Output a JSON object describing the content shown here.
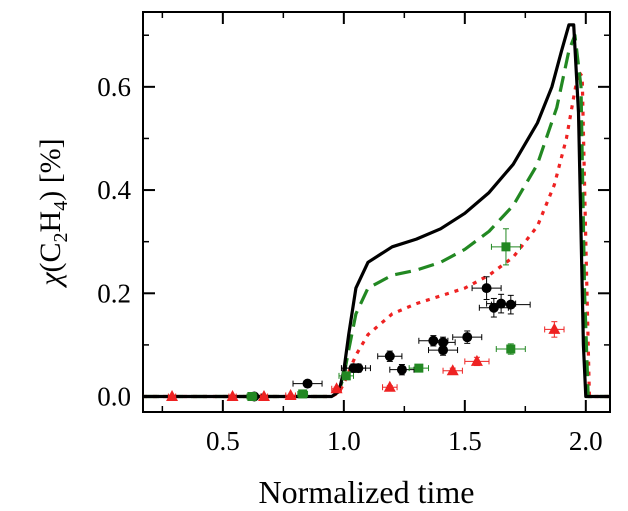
{
  "chart_data": {
    "type": "line",
    "xlabel": "Normalized time",
    "ylabel": {
      "chi": "χ",
      "open": "(C",
      "sub1": "2",
      "mid": "H",
      "sub2": "4",
      "close": ") [%]"
    },
    "xlim": [
      0.17,
      2.1
    ],
    "ylim": [
      -0.03,
      0.745
    ],
    "x_ticks": [
      0.5,
      1.0,
      1.5,
      2.0
    ],
    "x_tick_labels": [
      "0.5",
      "1.0",
      "1.5",
      "2.0"
    ],
    "y_ticks": [
      0.0,
      0.2,
      0.4,
      0.6
    ],
    "y_tick_labels": [
      "0.0",
      "0.2",
      "0.4",
      "0.6"
    ],
    "grid": false,
    "legend": "none",
    "series": [
      {
        "style": "solid",
        "color": "#000000",
        "x": [
          0.17,
          0.95,
          0.98,
          1.0,
          1.02,
          1.05,
          1.1,
          1.2,
          1.3,
          1.4,
          1.5,
          1.6,
          1.7,
          1.8,
          1.86,
          1.9,
          1.93,
          1.95,
          1.97,
          1.99,
          2.0,
          2.1
        ],
        "y": [
          0.0,
          0.0,
          0.01,
          0.05,
          0.12,
          0.21,
          0.26,
          0.29,
          0.305,
          0.325,
          0.355,
          0.395,
          0.45,
          0.53,
          0.6,
          0.67,
          0.72,
          0.72,
          0.55,
          0.1,
          0.0,
          0.0
        ]
      },
      {
        "style": "dashed",
        "color": "#228822",
        "x": [
          0.17,
          0.95,
          0.98,
          1.0,
          1.02,
          1.05,
          1.1,
          1.2,
          1.3,
          1.4,
          1.5,
          1.6,
          1.7,
          1.8,
          1.88,
          1.93,
          1.955,
          1.98,
          1.995,
          2.01,
          2.1
        ],
        "y": [
          0.0,
          0.0,
          0.01,
          0.04,
          0.09,
          0.16,
          0.21,
          0.235,
          0.245,
          0.26,
          0.285,
          0.32,
          0.37,
          0.45,
          0.56,
          0.67,
          0.7,
          0.6,
          0.2,
          0.0,
          0.0
        ]
      },
      {
        "style": "dotted",
        "color": "#ee2222",
        "x": [
          0.17,
          0.95,
          0.98,
          1.0,
          1.05,
          1.1,
          1.2,
          1.3,
          1.4,
          1.5,
          1.6,
          1.7,
          1.8,
          1.87,
          1.92,
          1.95,
          1.97,
          1.985,
          2.0,
          2.015,
          2.1
        ],
        "y": [
          0.0,
          0.0,
          0.008,
          0.025,
          0.08,
          0.12,
          0.16,
          0.18,
          0.195,
          0.21,
          0.235,
          0.27,
          0.33,
          0.41,
          0.5,
          0.58,
          0.63,
          0.62,
          0.3,
          0.0,
          0.0
        ]
      }
    ],
    "scatter": [
      {
        "marker": "circle",
        "color": "#000000",
        "points": [
          {
            "x": 0.63,
            "y": 0.0,
            "xerr": 0.03,
            "yerr": 0.0
          },
          {
            "x": 0.85,
            "y": 0.025,
            "xerr": 0.06,
            "yerr": 0.004
          },
          {
            "x": 1.04,
            "y": 0.055,
            "xerr": 0.05,
            "yerr": 0.008
          },
          {
            "x": 1.06,
            "y": 0.055,
            "xerr": 0.05,
            "yerr": 0.008
          },
          {
            "x": 1.19,
            "y": 0.078,
            "xerr": 0.05,
            "yerr": 0.01
          },
          {
            "x": 1.24,
            "y": 0.052,
            "xerr": 0.05,
            "yerr": 0.01
          },
          {
            "x": 1.37,
            "y": 0.108,
            "xerr": 0.06,
            "yerr": 0.01
          },
          {
            "x": 1.41,
            "y": 0.105,
            "xerr": 0.05,
            "yerr": 0.01
          },
          {
            "x": 1.41,
            "y": 0.09,
            "xerr": 0.06,
            "yerr": 0.01
          },
          {
            "x": 1.51,
            "y": 0.115,
            "xerr": 0.06,
            "yerr": 0.012
          },
          {
            "x": 1.59,
            "y": 0.21,
            "xerr": 0.06,
            "yerr": 0.022
          },
          {
            "x": 1.62,
            "y": 0.172,
            "xerr": 0.06,
            "yerr": 0.018
          },
          {
            "x": 1.65,
            "y": 0.18,
            "xerr": 0.06,
            "yerr": 0.018
          },
          {
            "x": 1.69,
            "y": 0.178,
            "xerr": 0.08,
            "yerr": 0.018
          }
        ]
      },
      {
        "marker": "square",
        "color": "#228822",
        "points": [
          {
            "x": 0.62,
            "y": 0.0,
            "xerr": 0.02,
            "yerr": 0.0
          },
          {
            "x": 0.83,
            "y": 0.005,
            "xerr": 0.02,
            "yerr": 0.003
          },
          {
            "x": 1.01,
            "y": 0.04,
            "xerr": 0.03,
            "yerr": 0.005
          },
          {
            "x": 1.31,
            "y": 0.055,
            "xerr": 0.04,
            "yerr": 0.006
          },
          {
            "x": 1.67,
            "y": 0.29,
            "xerr": 0.06,
            "yerr": 0.035
          },
          {
            "x": 1.69,
            "y": 0.092,
            "xerr": 0.06,
            "yerr": 0.01
          }
        ]
      },
      {
        "marker": "triangle",
        "color": "#ee2222",
        "points": [
          {
            "x": 0.29,
            "y": 0.0,
            "xerr": 0.015,
            "yerr": 0.0
          },
          {
            "x": 0.54,
            "y": 0.0,
            "xerr": 0.015,
            "yerr": 0.0
          },
          {
            "x": 0.67,
            "y": 0.0,
            "xerr": 0.015,
            "yerr": 0.0
          },
          {
            "x": 0.78,
            "y": 0.002,
            "xerr": 0.02,
            "yerr": 0.0
          },
          {
            "x": 0.97,
            "y": 0.015,
            "xerr": 0.02,
            "yerr": 0.003
          },
          {
            "x": 1.19,
            "y": 0.018,
            "xerr": 0.03,
            "yerr": 0.003
          },
          {
            "x": 1.45,
            "y": 0.05,
            "xerr": 0.04,
            "yerr": 0.005
          },
          {
            "x": 1.55,
            "y": 0.068,
            "xerr": 0.05,
            "yerr": 0.008
          },
          {
            "x": 1.87,
            "y": 0.13,
            "xerr": 0.04,
            "yerr": 0.015
          }
        ]
      }
    ]
  }
}
